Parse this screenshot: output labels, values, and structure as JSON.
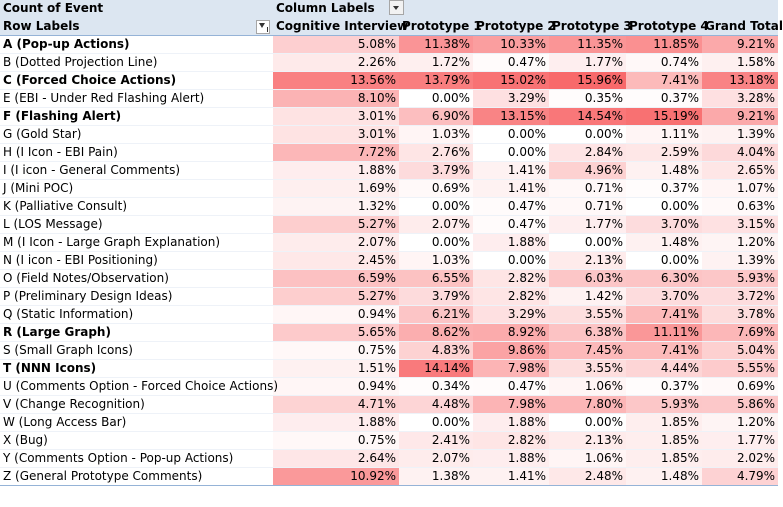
{
  "pivot": {
    "title": "Count of Event",
    "column_labels_caption": "Column Labels",
    "row_labels_caption": "Row Labels",
    "columns": [
      "Cognitive Interview",
      "Prototype 1",
      "Prototype 2",
      "Prototype 3",
      "Prototype 4",
      "Grand Total"
    ],
    "rows": [
      {
        "label": "A (Pop-up Actions)",
        "bold": true,
        "values": [
          "5.08%",
          "11.38%",
          "10.33%",
          "11.35%",
          "11.85%",
          "9.21%"
        ]
      },
      {
        "label": "B (Dotted Projection Line)",
        "bold": false,
        "values": [
          "2.26%",
          "1.72%",
          "0.47%",
          "1.77%",
          "0.74%",
          "1.58%"
        ]
      },
      {
        "label": "C (Forced Choice Actions)",
        "bold": true,
        "values": [
          "13.56%",
          "13.79%",
          "15.02%",
          "15.96%",
          "7.41%",
          "13.18%"
        ]
      },
      {
        "label": "E (EBI - Under Red Flashing Alert)",
        "bold": false,
        "values": [
          "8.10%",
          "0.00%",
          "3.29%",
          "0.35%",
          "0.37%",
          "3.28%"
        ]
      },
      {
        "label": "F (Flashing Alert)",
        "bold": true,
        "values": [
          "3.01%",
          "6.90%",
          "13.15%",
          "14.54%",
          "15.19%",
          "9.21%"
        ]
      },
      {
        "label": "G (Gold Star)",
        "bold": false,
        "values": [
          "3.01%",
          "1.03%",
          "0.00%",
          "0.00%",
          "1.11%",
          "1.39%"
        ]
      },
      {
        "label": "H (I Icon - EBI Pain)",
        "bold": false,
        "values": [
          "7.72%",
          "2.76%",
          "0.00%",
          "2.84%",
          "2.59%",
          "4.04%"
        ]
      },
      {
        "label": "I (I icon - General Comments)",
        "bold": false,
        "values": [
          "1.88%",
          "3.79%",
          "1.41%",
          "4.96%",
          "1.48%",
          "2.65%"
        ]
      },
      {
        "label": "J (Mini POC)",
        "bold": false,
        "values": [
          "1.69%",
          "0.69%",
          "1.41%",
          "0.71%",
          "0.37%",
          "1.07%"
        ]
      },
      {
        "label": "K (Palliative Consult)",
        "bold": false,
        "values": [
          "1.32%",
          "0.00%",
          "0.47%",
          "0.71%",
          "0.00%",
          "0.63%"
        ]
      },
      {
        "label": "L (LOS Message)",
        "bold": false,
        "values": [
          "5.27%",
          "2.07%",
          "0.47%",
          "1.77%",
          "3.70%",
          "3.15%"
        ]
      },
      {
        "label": "M (I Icon - Large Graph Explanation)",
        "bold": false,
        "values": [
          "2.07%",
          "0.00%",
          "1.88%",
          "0.00%",
          "1.48%",
          "1.20%"
        ]
      },
      {
        "label": "N (I icon - EBI Positioning)",
        "bold": false,
        "values": [
          "2.45%",
          "1.03%",
          "0.00%",
          "2.13%",
          "0.00%",
          "1.39%"
        ]
      },
      {
        "label": "O (Field Notes/Observation)",
        "bold": false,
        "values": [
          "6.59%",
          "6.55%",
          "2.82%",
          "6.03%",
          "6.30%",
          "5.93%"
        ]
      },
      {
        "label": "P (Preliminary Design Ideas)",
        "bold": false,
        "values": [
          "5.27%",
          "3.79%",
          "2.82%",
          "1.42%",
          "3.70%",
          "3.72%"
        ]
      },
      {
        "label": "Q (Static Information)",
        "bold": false,
        "values": [
          "0.94%",
          "6.21%",
          "3.29%",
          "3.55%",
          "7.41%",
          "3.78%"
        ]
      },
      {
        "label": "R (Large Graph)",
        "bold": true,
        "values": [
          "5.65%",
          "8.62%",
          "8.92%",
          "6.38%",
          "11.11%",
          "7.69%"
        ]
      },
      {
        "label": "S (Small Graph Icons)",
        "bold": false,
        "values": [
          "0.75%",
          "4.83%",
          "9.86%",
          "7.45%",
          "7.41%",
          "5.04%"
        ]
      },
      {
        "label": "T (NNN Icons)",
        "bold": true,
        "values": [
          "1.51%",
          "14.14%",
          "7.98%",
          "3.55%",
          "4.44%",
          "5.55%"
        ]
      },
      {
        "label": "U (Comments Option - Forced Choice Actions)",
        "bold": false,
        "values": [
          "0.94%",
          "0.34%",
          "0.47%",
          "1.06%",
          "0.37%",
          "0.69%"
        ]
      },
      {
        "label": "V (Change Recognition)",
        "bold": false,
        "values": [
          "4.71%",
          "4.48%",
          "7.98%",
          "7.80%",
          "5.93%",
          "5.86%"
        ]
      },
      {
        "label": "W (Long Access Bar)",
        "bold": false,
        "values": [
          "1.88%",
          "0.00%",
          "1.88%",
          "0.00%",
          "1.85%",
          "1.20%"
        ]
      },
      {
        "label": "X (Bug)",
        "bold": false,
        "values": [
          "0.75%",
          "2.41%",
          "2.82%",
          "2.13%",
          "1.85%",
          "1.77%"
        ]
      },
      {
        "label": "Y (Comments Option - Pop-up Actions)",
        "bold": false,
        "values": [
          "2.64%",
          "2.07%",
          "1.88%",
          "1.06%",
          "1.85%",
          "2.02%"
        ]
      },
      {
        "label": "Z (General Prototype Comments)",
        "bold": false,
        "values": [
          "10.92%",
          "1.38%",
          "1.41%",
          "2.48%",
          "1.48%",
          "4.79%"
        ]
      }
    ]
  },
  "heatmap": {
    "low_color": "#ffffff",
    "high_color": "#f8696b",
    "max_value": 16.0
  }
}
